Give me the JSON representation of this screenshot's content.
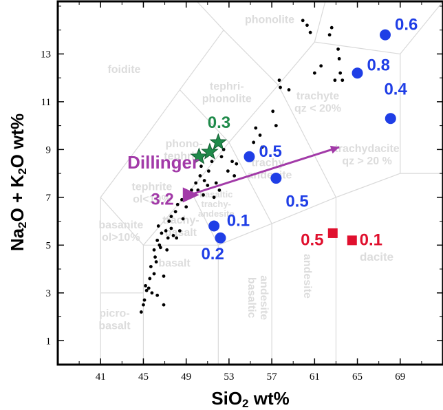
{
  "chart_data": {
    "type": "scatter",
    "xlabel_main": "SiO",
    "xlabel_sub": "2",
    "xlabel_rest": " wt%",
    "ylabel_a": "Na",
    "ylabel_a_sub": "2",
    "ylabel_b": "O + K",
    "ylabel_b_sub": "2",
    "ylabel_c": "O wt%",
    "xlim": [
      37,
      73
    ],
    "ylim": [
      0,
      15.2
    ],
    "x_ticks": [
      41,
      45,
      49,
      53,
      57,
      61,
      65,
      69
    ],
    "y_ticks": [
      1,
      3,
      5,
      7,
      9,
      11,
      13
    ],
    "grid": false,
    "field_labels": [
      {
        "id": "phonolite",
        "lines": [
          "phonolite"
        ],
        "x": 56.8,
        "y": 14.3
      },
      {
        "id": "foidite",
        "lines": [
          "foidite"
        ],
        "x": 43.2,
        "y": 12.2
      },
      {
        "id": "tephriphonolite",
        "lines": [
          "tephri-",
          "phonolite"
        ],
        "x": 52.8,
        "y": 11.5
      },
      {
        "id": "trachyte",
        "lines": [
          "trachyte",
          "qz < 20%"
        ],
        "x": 61.3,
        "y": 11.1
      },
      {
        "id": "phonotephrite",
        "lines": [
          "phono-",
          "tephrite"
        ],
        "x": 48.8,
        "y": 9.1
      },
      {
        "id": "trachydacite",
        "lines": [
          "trachydacite",
          "qz > 20 %"
        ],
        "x": 65.9,
        "y": 8.9
      },
      {
        "id": "trachyandesite",
        "lines": [
          "trachy-",
          "andesite"
        ],
        "x": 56.8,
        "y": 8.3
      },
      {
        "id": "tephrite",
        "lines": [
          "tephrite",
          "ol<10%"
        ],
        "x": 45.8,
        "y": 7.3
      },
      {
        "id": "basaltic-trachyandesite",
        "lines": [
          "basaltic",
          "trachy-",
          "andesite"
        ],
        "x": 51.8,
        "y": 7.0
      },
      {
        "id": "trachybasalt",
        "lines": [
          "trachy-",
          "basalt"
        ],
        "x": 48.5,
        "y": 5.9
      },
      {
        "id": "basanite",
        "lines": [
          "basanite",
          "ol>10%"
        ],
        "x": 42.9,
        "y": 5.7
      },
      {
        "id": "basalt",
        "lines": [
          "basalt"
        ],
        "x": 47.9,
        "y": 4.1
      },
      {
        "id": "picrobasalt",
        "lines": [
          "picro-",
          "basalt"
        ],
        "x": 42.3,
        "y": 2.0
      }
    ],
    "vertical_field_labels": [
      {
        "id": "basaltic-andesite",
        "lines": [
          "basaltic",
          "andesite"
        ],
        "x": 54.8,
        "y": 2.8
      },
      {
        "id": "andesite",
        "lines": [
          "andesite"
        ],
        "x": 60.0,
        "y": 3.7
      },
      {
        "id": "dacite-label",
        "lines": [],
        "x": 0,
        "y": 0
      }
    ],
    "dacite": {
      "text": "dacite",
      "x": 66.8,
      "y": 5.1
    },
    "series": [
      {
        "name": "",
        "marker": "dot",
        "color": "#000000",
        "points": [
          [
            44.8,
            2.2
          ],
          [
            45.0,
            2.5
          ],
          [
            45.1,
            2.7
          ],
          [
            45.2,
            3.3
          ],
          [
            45.3,
            3.1
          ],
          [
            45.5,
            3.2
          ],
          [
            45.6,
            3.6
          ],
          [
            45.8,
            3.0
          ],
          [
            45.7,
            4.1
          ],
          [
            46.0,
            3.8
          ],
          [
            46.2,
            4.3
          ],
          [
            46.0,
            4.8
          ],
          [
            46.3,
            5.2
          ],
          [
            46.1,
            4.5
          ],
          [
            46.5,
            5.0
          ],
          [
            46.4,
            5.8
          ],
          [
            46.7,
            5.5
          ],
          [
            46.6,
            4.9
          ],
          [
            46.9,
            3.7
          ],
          [
            47.1,
            5.6
          ],
          [
            47.3,
            5.3
          ],
          [
            47.4,
            6.0
          ],
          [
            47.6,
            6.2
          ],
          [
            47.8,
            5.4
          ],
          [
            48.0,
            6.4
          ],
          [
            47.6,
            5.7
          ],
          [
            48.2,
            6.7
          ],
          [
            48.1,
            5.3
          ],
          [
            48.4,
            5.6
          ],
          [
            48.6,
            6.9
          ],
          [
            48.7,
            6.1
          ],
          [
            49.0,
            6.6
          ],
          [
            49.2,
            7.1
          ],
          [
            49.5,
            7.3
          ],
          [
            49.9,
            7.6
          ],
          [
            50.1,
            7.3
          ],
          [
            50.3,
            7.9
          ],
          [
            50.4,
            8.3
          ],
          [
            50.6,
            7.1
          ],
          [
            50.7,
            7.7
          ],
          [
            51.0,
            7.5
          ],
          [
            51.1,
            8.1
          ],
          [
            51.4,
            8.5
          ],
          [
            51.6,
            7.0
          ],
          [
            51.8,
            7.6
          ],
          [
            52.1,
            7.3
          ],
          [
            52.3,
            8.7
          ],
          [
            52.5,
            9.0
          ],
          [
            52.9,
            8.1
          ],
          [
            53.3,
            8.5
          ],
          [
            53.5,
            7.9
          ],
          [
            53.7,
            8.4
          ],
          [
            54.7,
            8.7
          ],
          [
            55.3,
            9.3
          ],
          [
            55.5,
            9.9
          ],
          [
            55.9,
            9.6
          ],
          [
            56.1,
            9.1
          ],
          [
            57.1,
            10.6
          ],
          [
            57.4,
            10.0
          ],
          [
            57.7,
            11.9
          ],
          [
            57.8,
            11.6
          ],
          [
            58.6,
            11.5
          ],
          [
            59.9,
            14.4
          ],
          [
            60.3,
            14.2
          ],
          [
            60.6,
            13.9
          ],
          [
            61.0,
            12.2
          ],
          [
            61.6,
            12.5
          ],
          [
            62.4,
            13.8
          ],
          [
            62.6,
            14.1
          ],
          [
            63.2,
            13.2
          ],
          [
            63.3,
            12.8
          ],
          [
            63.4,
            12.2
          ],
          [
            63.6,
            11.9
          ],
          [
            62.9,
            11.9
          ],
          [
            46.9,
            2.5
          ],
          [
            46.3,
            2.9
          ],
          [
            47.2,
            4.8
          ]
        ]
      },
      {
        "name": "",
        "marker": "circle",
        "color": "#1f3ee6",
        "points": [
          [
            67.6,
            13.8
          ],
          [
            65.0,
            12.2
          ],
          [
            68.1,
            10.3
          ],
          [
            54.9,
            8.7
          ],
          [
            57.4,
            7.8
          ],
          [
            51.6,
            5.8
          ],
          [
            52.2,
            5.3
          ]
        ],
        "labels": [
          "0.6",
          "0.8",
          "0.4",
          "0.5",
          "0.5",
          "0.1",
          "0.2"
        ]
      },
      {
        "name": "",
        "marker": "star",
        "color": "#1f8a4a",
        "points": [
          [
            50.2,
            8.7
          ],
          [
            51.2,
            8.9
          ],
          [
            52.0,
            9.3
          ]
        ],
        "labels": [
          "0.3"
        ]
      },
      {
        "name": "",
        "marker": "square",
        "color": "#e0102e",
        "points": [
          [
            62.7,
            5.5
          ],
          [
            64.5,
            5.2
          ]
        ],
        "labels": [
          "0.5",
          "0.1"
        ]
      }
    ],
    "arrow": {
      "from": [
        49.3,
        7.1
      ],
      "to": [
        63.3,
        9.1
      ],
      "color": "#a23aa8"
    },
    "triangle": {
      "at": [
        49.2,
        7.1
      ],
      "color": "#a23aa8"
    },
    "annotations": [
      {
        "text": "Dillinger",
        "color": "#a23aa8",
        "x": 43.5,
        "y": 8.2,
        "size": 26
      },
      {
        "text": "3.2",
        "color": "#a23aa8",
        "x": 45.7,
        "y": 6.7,
        "size": 24
      },
      {
        "text": "0.3",
        "color": "#1f8a4a",
        "x": 51.0,
        "y": 9.9,
        "size": 24
      },
      {
        "text": "0.6",
        "color": "#1f3ee6",
        "x": 68.5,
        "y": 14.0,
        "size": 24
      },
      {
        "text": "0.8",
        "color": "#1f3ee6",
        "x": 65.9,
        "y": 12.3,
        "size": 24
      },
      {
        "text": "0.4",
        "color": "#1f3ee6",
        "x": 67.5,
        "y": 11.3,
        "size": 24
      },
      {
        "text": "0.5",
        "color": "#1f3ee6",
        "x": 55.8,
        "y": 8.7,
        "size": 24
      },
      {
        "text": "0.5",
        "color": "#1f3ee6",
        "x": 58.3,
        "y": 6.6,
        "size": 24
      },
      {
        "text": "0.1",
        "color": "#1f3ee6",
        "x": 52.8,
        "y": 5.8,
        "size": 24
      },
      {
        "text": "0.2",
        "color": "#1f3ee6",
        "x": 50.4,
        "y": 4.4,
        "size": 24
      },
      {
        "text": "0.5",
        "color": "#e0102e",
        "x": 59.7,
        "y": 5.0,
        "size": 24
      },
      {
        "text": "0.1",
        "color": "#e0102e",
        "x": 65.2,
        "y": 5.0,
        "size": 24
      }
    ]
  }
}
